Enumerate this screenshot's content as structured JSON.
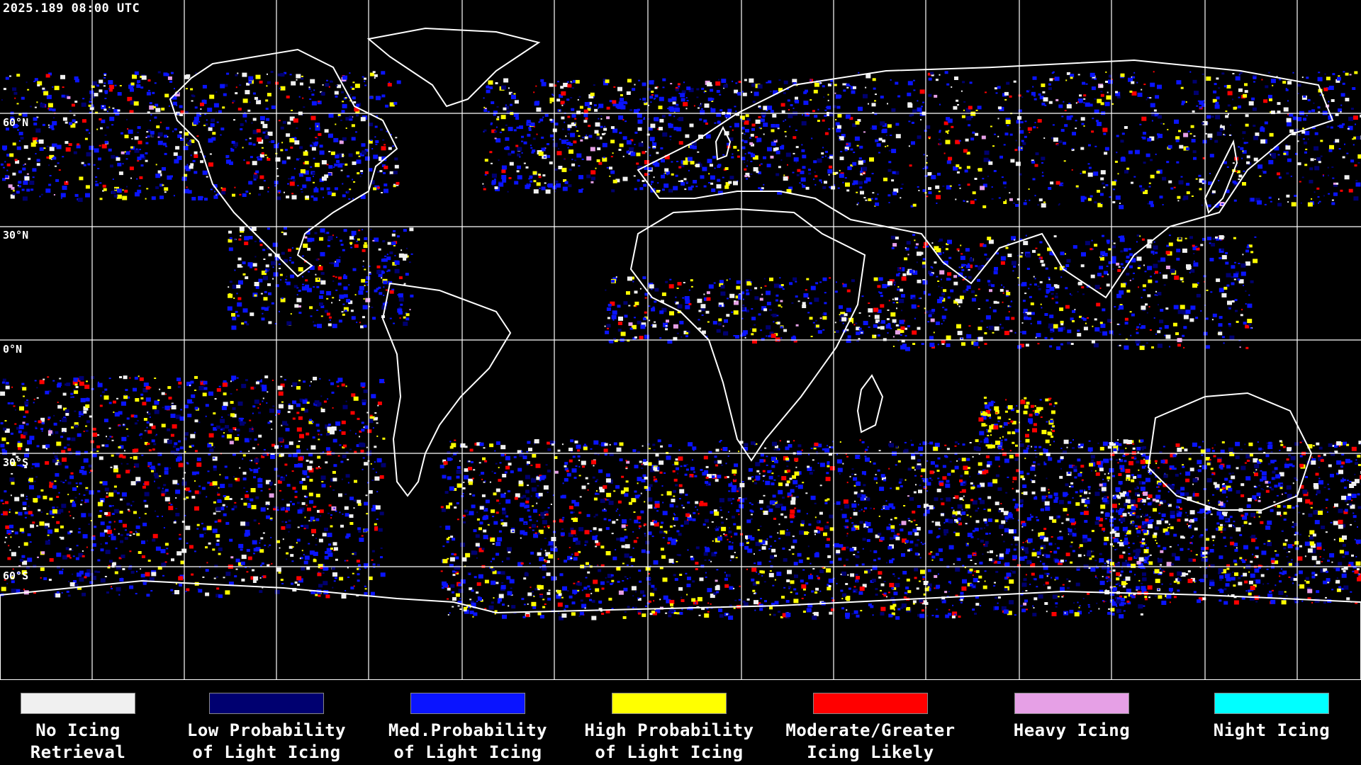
{
  "timestamp": "2025.189 08:00 UTC",
  "lat_labels": [
    "60°N",
    "30°N",
    "0°N",
    "30°S",
    "60°S"
  ],
  "colors": {
    "background": "#000000",
    "coastline": "#ffffff",
    "grid": "#ffffff",
    "no_icing_retrieval": "#f0f0f0",
    "low_probability": "#000070",
    "med_probability": "#0a14ff",
    "high_probability": "#ffff00",
    "moderate_greater": "#ff0000",
    "heavy_icing": "#e6a0e6",
    "night_icing": "#00ffff"
  },
  "legend": [
    {
      "label": "No Icing\nRetrieval",
      "color": "#f0f0f0"
    },
    {
      "label": "Low Probability\nof Light Icing",
      "color": "#000070"
    },
    {
      "label": "Med.Probability\nof Light Icing",
      "color": "#0a14ff"
    },
    {
      "label": "High Probability\nof Light Icing",
      "color": "#ffff00"
    },
    {
      "label": "Moderate/Greater\nIcing Likely",
      "color": "#ff0000"
    },
    {
      "label": "Heavy Icing",
      "color": "#e6a0e6"
    },
    {
      "label": "Night Icing",
      "color": "#00ffff"
    }
  ]
}
